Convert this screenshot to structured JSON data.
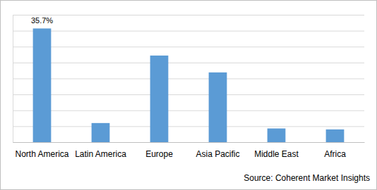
{
  "chart_data": {
    "type": "bar",
    "categories": [
      "North America",
      "Latin America",
      "Europe",
      "Asia Pacific",
      "Middle East",
      "Africa"
    ],
    "values": [
      35.7,
      6.0,
      27.2,
      21.9,
      4.3,
      4.0
    ],
    "value_labels": [
      "35.7%",
      null,
      null,
      null,
      null,
      null
    ],
    "data_labels": true,
    "color": "#5b9bd5",
    "ylim": [
      0,
      40
    ],
    "yticks": [
      0,
      5,
      10,
      15,
      20,
      25,
      30,
      35,
      40
    ],
    "grid": true,
    "tick_labels": "x",
    "annotation": "Source: Coherent Market Insights"
  }
}
